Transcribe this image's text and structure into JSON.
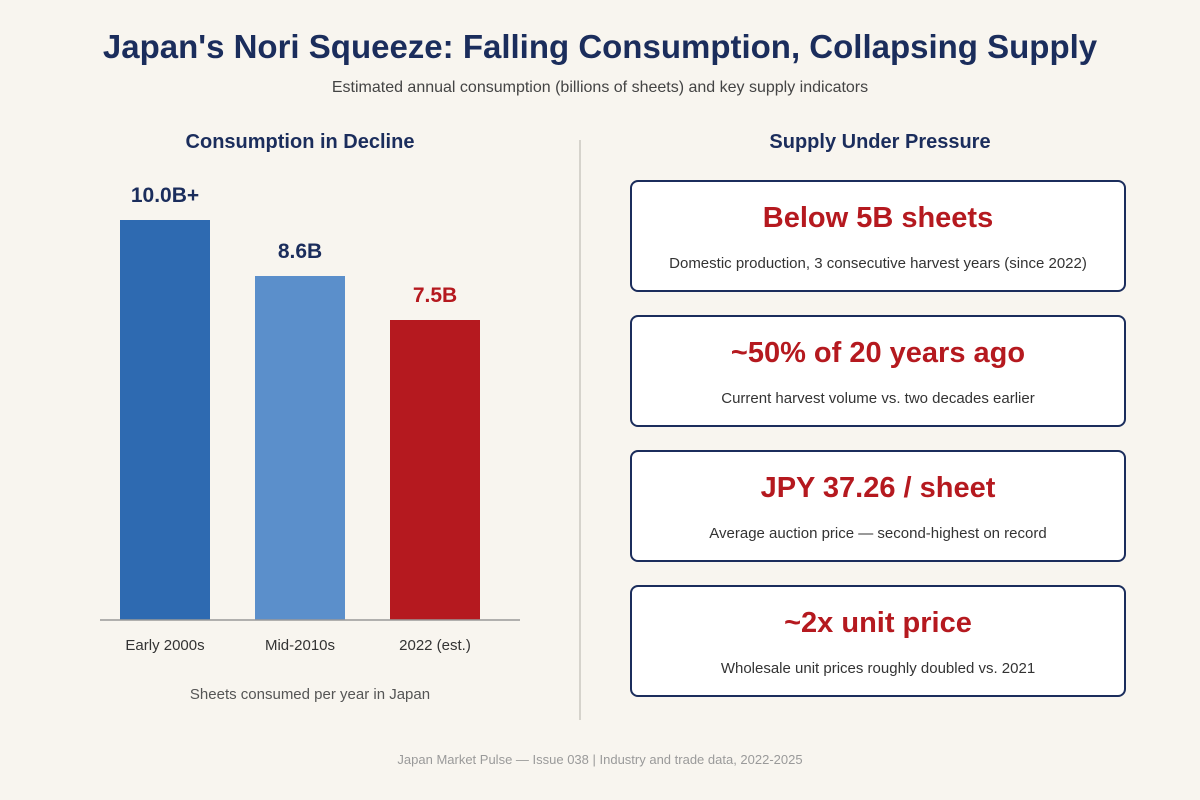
{
  "header": {
    "title": "Japan's Nori Squeeze: Falling Consumption, Collapsing Supply",
    "subtitle": "Estimated annual consumption (billions of sheets) and key supply indicators"
  },
  "left_panel": {
    "title": "Consumption in Decline"
  },
  "right_panel": {
    "title": "Supply Under Pressure",
    "cards": [
      {
        "headline": "Below 5B sheets",
        "detail": "Domestic production, 3 consecutive harvest years (since 2022)"
      },
      {
        "headline": "~50% of 20 years ago",
        "detail": "Current harvest volume vs. two decades earlier"
      },
      {
        "headline": "JPY 37.26 / sheet",
        "detail": "Average auction price — second-highest on record"
      },
      {
        "headline": "~2x unit price",
        "detail": "Wholesale unit prices roughly doubled vs. 2021"
      }
    ]
  },
  "chart_data": {
    "type": "bar",
    "title": "Consumption in Decline",
    "categories": [
      "Early 2000s",
      "Mid-2010s",
      "2022 (est.)"
    ],
    "values": [
      10.0,
      8.6,
      7.5
    ],
    "value_labels": [
      "10.0B+",
      "8.6B",
      "7.5B"
    ],
    "xlabel": "Sheets consumed per year in Japan",
    "ylabel": "",
    "ylim": [
      0,
      10.0
    ],
    "unit": "billions of sheets",
    "grid": false,
    "colors": [
      "#2e6ab1",
      "#5b8fcb",
      "#b5191f"
    ],
    "label_colors": [
      "#1b2d5c",
      "#1b2d5c",
      "#b5191f"
    ]
  },
  "footer": {
    "text": "Japan Market Pulse — Issue 038 | Industry and trade data, 2022-2025"
  }
}
